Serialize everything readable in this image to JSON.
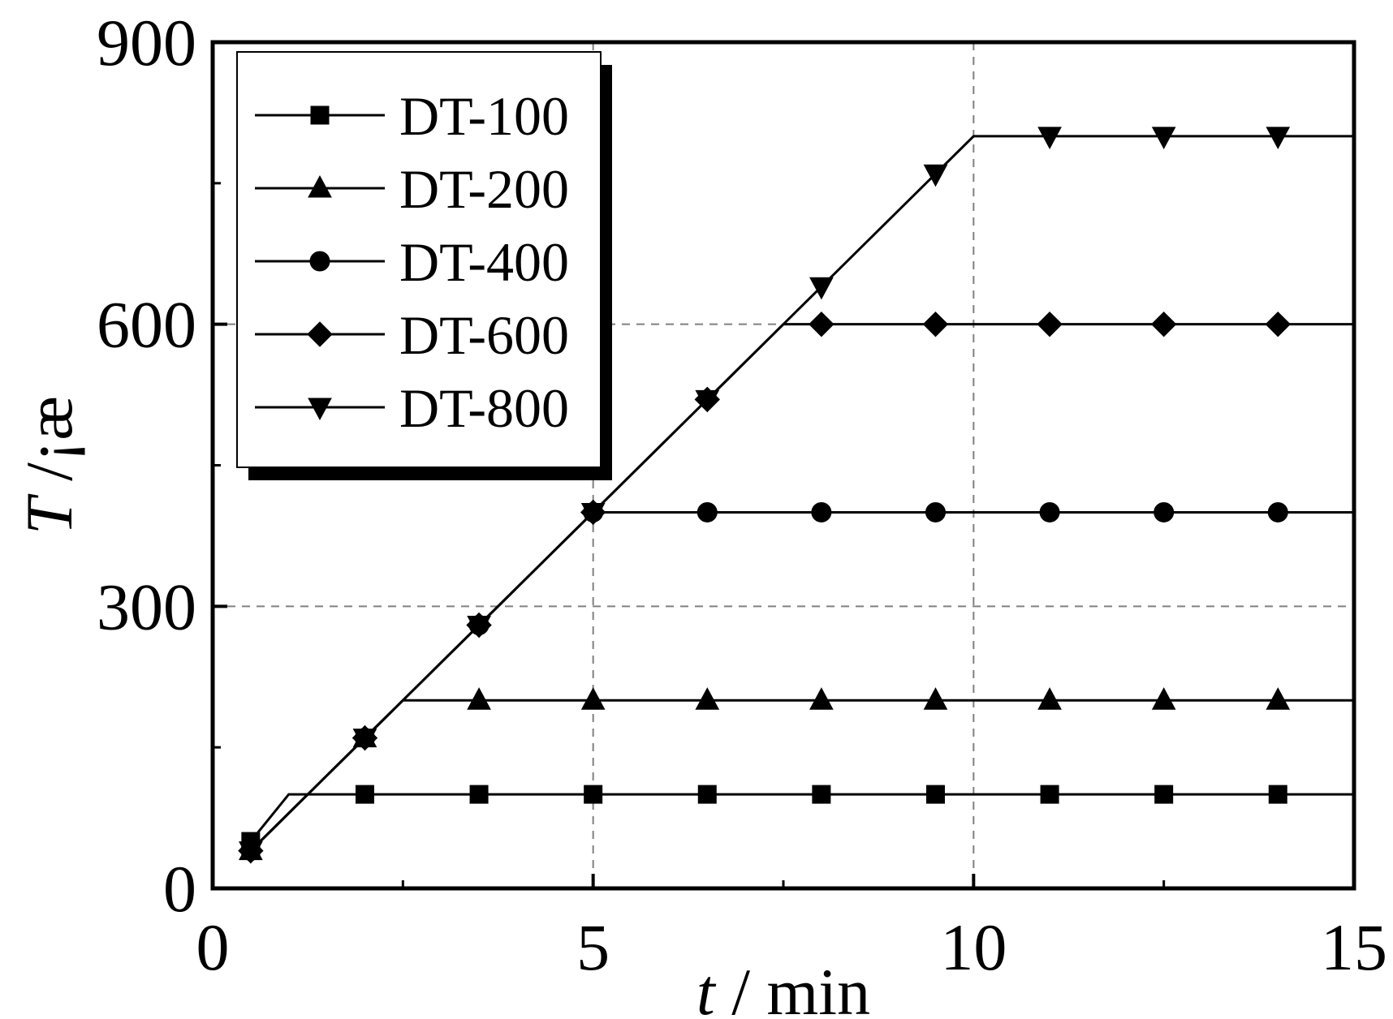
{
  "chart_data": {
    "type": "line",
    "title": "",
    "xlabel": {
      "symbol": "t",
      "unit": " / min"
    },
    "ylabel": {
      "symbol": "T",
      "unit": " /¡æ"
    },
    "xlim": [
      0,
      15
    ],
    "ylim": [
      0,
      900
    ],
    "xticks": [
      0,
      5,
      10,
      15
    ],
    "xminor": [
      2.5,
      7.5,
      12.5
    ],
    "yticks": [
      0,
      300,
      600,
      900
    ],
    "yminor": [
      150,
      450,
      750
    ],
    "reference_lines": {
      "x": [
        5,
        10
      ],
      "y": [
        300,
        600
      ]
    },
    "grid": false,
    "legend_position": "top-left",
    "series": [
      {
        "name": "DT-100",
        "marker": "square",
        "line": [
          [
            0.5,
            50
          ],
          [
            1,
            100
          ],
          [
            15,
            100
          ]
        ],
        "markers": [
          [
            0.5,
            50
          ],
          [
            2,
            100
          ],
          [
            3.5,
            100
          ],
          [
            5,
            100
          ],
          [
            6.5,
            100
          ],
          [
            8,
            100
          ],
          [
            9.5,
            100
          ],
          [
            11,
            100
          ],
          [
            12.5,
            100
          ],
          [
            14,
            100
          ]
        ]
      },
      {
        "name": "DT-200",
        "marker": "triangle-up",
        "line": [
          [
            0.5,
            40
          ],
          [
            2.5,
            200
          ],
          [
            15,
            200
          ]
        ],
        "markers": [
          [
            0.5,
            40
          ],
          [
            2,
            160
          ],
          [
            3.5,
            200
          ],
          [
            5,
            200
          ],
          [
            6.5,
            200
          ],
          [
            8,
            200
          ],
          [
            9.5,
            200
          ],
          [
            11,
            200
          ],
          [
            12.5,
            200
          ],
          [
            14,
            200
          ]
        ]
      },
      {
        "name": "DT-400",
        "marker": "circle",
        "line": [
          [
            0.5,
            40
          ],
          [
            5,
            400
          ],
          [
            15,
            400
          ]
        ],
        "markers": [
          [
            0.5,
            40
          ],
          [
            2,
            160
          ],
          [
            3.5,
            280
          ],
          [
            5,
            400
          ],
          [
            6.5,
            400
          ],
          [
            8,
            400
          ],
          [
            9.5,
            400
          ],
          [
            11,
            400
          ],
          [
            12.5,
            400
          ],
          [
            14,
            400
          ]
        ]
      },
      {
        "name": "DT-600",
        "marker": "diamond",
        "line": [
          [
            0.5,
            40
          ],
          [
            7.5,
            600
          ],
          [
            15,
            600
          ]
        ],
        "markers": [
          [
            0.5,
            40
          ],
          [
            2,
            160
          ],
          [
            3.5,
            280
          ],
          [
            5,
            400
          ],
          [
            6.5,
            520
          ],
          [
            8,
            600
          ],
          [
            9.5,
            600
          ],
          [
            11,
            600
          ],
          [
            12.5,
            600
          ],
          [
            14,
            600
          ]
        ]
      },
      {
        "name": "DT-800",
        "marker": "triangle-down",
        "line": [
          [
            0.5,
            40
          ],
          [
            10,
            800
          ],
          [
            15,
            800
          ]
        ],
        "markers": [
          [
            0.5,
            40
          ],
          [
            2,
            160
          ],
          [
            3.5,
            280
          ],
          [
            5,
            400
          ],
          [
            6.5,
            520
          ],
          [
            8,
            640
          ],
          [
            9.5,
            760
          ],
          [
            11,
            800
          ],
          [
            12.5,
            800
          ],
          [
            14,
            800
          ]
        ]
      }
    ]
  }
}
